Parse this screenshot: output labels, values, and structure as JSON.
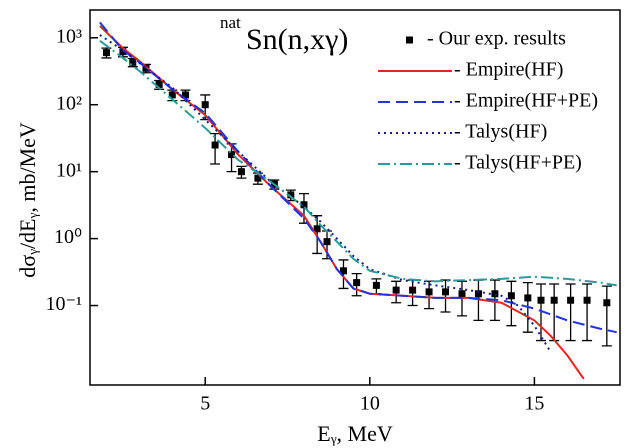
{
  "chart_data": {
    "type": "line",
    "title": {
      "superscript": "nat",
      "text": "Sn(n,xγ)"
    },
    "x_label": "Eᵧ, MeV",
    "y_label": "dσᵧ/dEᵧ, mb/MeV",
    "xlim": [
      1.5,
      17.6
    ],
    "xticks": [
      5,
      10,
      15
    ],
    "ylim": [
      0.0065,
      2600
    ],
    "yscale": "log",
    "yticks": [
      {
        "value": 0.1,
        "label": "10⁻¹"
      },
      {
        "value": 1,
        "label": "10⁰"
      },
      {
        "value": 10,
        "label": "10¹"
      },
      {
        "value": 100,
        "label": "10²"
      },
      {
        "value": 1000,
        "label": "10³"
      }
    ],
    "legend": "top-right",
    "series": [
      {
        "name": "- Our exp. results",
        "color": "#000000",
        "style": "markers",
        "x": [
          2.0,
          2.5,
          2.8,
          3.2,
          3.6,
          4.0,
          4.4,
          5.0,
          5.3,
          5.8,
          6.1,
          6.6,
          7.1,
          7.6,
          8.0,
          8.4,
          8.7,
          9.2,
          9.6,
          10.2,
          10.8,
          11.3,
          11.8,
          12.3,
          12.8,
          13.3,
          13.8,
          14.3,
          14.8,
          15.2,
          15.6,
          16.1,
          16.6,
          17.2
        ],
        "values": [
          600,
          620,
          430,
          350,
          200,
          140,
          140,
          100,
          25,
          18,
          10,
          8,
          6.5,
          4.5,
          3.2,
          1.4,
          0.9,
          0.33,
          0.22,
          0.2,
          0.17,
          0.17,
          0.16,
          0.16,
          0.15,
          0.15,
          0.15,
          0.14,
          0.13,
          0.12,
          0.12,
          0.12,
          0.12,
          0.11
        ],
        "errors": [
          100,
          100,
          60,
          50,
          30,
          25,
          25,
          40,
          12,
          8,
          2,
          1.5,
          1,
          0.8,
          1.5,
          0.8,
          0.4,
          0.15,
          0.08,
          0.05,
          0.06,
          0.07,
          0.07,
          0.08,
          0.08,
          0.09,
          0.09,
          0.09,
          0.09,
          0.09,
          0.09,
          0.09,
          0.09,
          0.085
        ]
      },
      {
        "name": "- Empire(HF)",
        "color": "#e8251f",
        "style": "solid",
        "x": [
          1.8,
          2.5,
          3,
          4,
          5,
          6,
          7,
          8,
          8.5,
          9,
          9.5,
          10,
          11,
          12,
          13,
          14,
          15,
          15.5,
          16,
          16.5
        ],
        "values": [
          1500,
          700,
          450,
          170,
          70,
          18,
          6,
          2.2,
          0.9,
          0.35,
          0.18,
          0.15,
          0.14,
          0.13,
          0.13,
          0.11,
          0.06,
          0.035,
          0.018,
          0.008
        ]
      },
      {
        "name": "- Empire(HF+PE)",
        "color": "#2233dd",
        "style": "dashed",
        "x": [
          1.8,
          2.5,
          3,
          4,
          5,
          6,
          7,
          8,
          8.5,
          9,
          9.5,
          10,
          11,
          12,
          13,
          14,
          15,
          16,
          17,
          17.5
        ],
        "values": [
          1700,
          650,
          430,
          170,
          75,
          20,
          6,
          2,
          0.9,
          0.35,
          0.18,
          0.15,
          0.14,
          0.13,
          0.13,
          0.12,
          0.09,
          0.06,
          0.045,
          0.04
        ]
      },
      {
        "name": "- Talys(HF)",
        "color": "#1a1a8c",
        "style": "dotted",
        "x": [
          1.8,
          2.5,
          3,
          4,
          5,
          6,
          7,
          8,
          8.5,
          9,
          9.5,
          10,
          11,
          12,
          13,
          14,
          14.5,
          15,
          15.5
        ],
        "values": [
          1100,
          650,
          420,
          180,
          60,
          20,
          7,
          3,
          1.8,
          1.0,
          0.55,
          0.35,
          0.24,
          0.2,
          0.17,
          0.14,
          0.1,
          0.05,
          0.02
        ]
      },
      {
        "name": "- Talys(HF+PE)",
        "color": "#2a9a9a",
        "style": "dashdot",
        "x": [
          1.8,
          2.5,
          3,
          4,
          5,
          6,
          7,
          8,
          8.5,
          9,
          9.5,
          10,
          11,
          12,
          13,
          14,
          15,
          16,
          17,
          17.5
        ],
        "values": [
          900,
          500,
          320,
          120,
          45,
          15,
          7,
          3,
          1.6,
          0.9,
          0.5,
          0.33,
          0.25,
          0.23,
          0.24,
          0.25,
          0.27,
          0.25,
          0.22,
          0.2
        ]
      }
    ]
  }
}
